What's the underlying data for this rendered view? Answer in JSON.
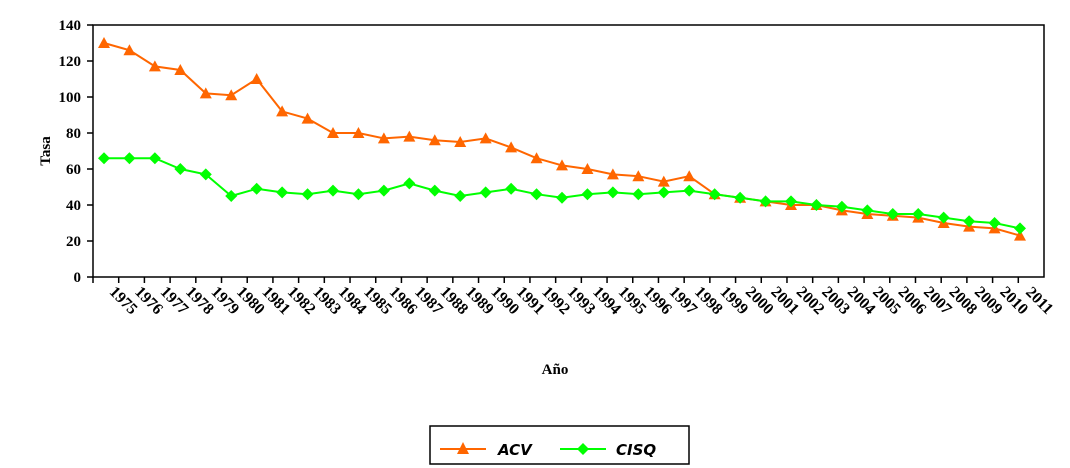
{
  "chart_data": {
    "type": "line",
    "title": "",
    "xlabel": "Año",
    "ylabel": "Tasa",
    "ylim": [
      0,
      140
    ],
    "yticks": [
      0,
      20,
      40,
      60,
      80,
      100,
      120,
      140
    ],
    "grid": false,
    "legend_position": "bottom-center",
    "categories": [
      "1975",
      "1976",
      "1977",
      "1978",
      "1979",
      "1980",
      "1981",
      "1982",
      "1983",
      "1984",
      "1985",
      "1986",
      "1987",
      "1988",
      "1989",
      "1990",
      "1991",
      "1992",
      "1993",
      "1994",
      "1995",
      "1996",
      "1997",
      "1998",
      "1999",
      "2000",
      "2001",
      "2002",
      "2003",
      "2004",
      "2005",
      "2006",
      "2007",
      "2008",
      "2009",
      "2010",
      "2011"
    ],
    "series": [
      {
        "name": "ACV",
        "color": "#FF6600",
        "marker": "triangle",
        "values": [
          130,
          126,
          117,
          115,
          102,
          101,
          110,
          92,
          88,
          80,
          80,
          77,
          78,
          76,
          75,
          77,
          72,
          66,
          62,
          60,
          57,
          56,
          53,
          56,
          46,
          44,
          42,
          40,
          40,
          37,
          35,
          34,
          33,
          30,
          28,
          27,
          23
        ]
      },
      {
        "name": "CISQ",
        "color": "#00FF00",
        "marker": "diamond",
        "values": [
          66,
          66,
          66,
          60,
          57,
          45,
          49,
          47,
          46,
          48,
          46,
          48,
          52,
          48,
          45,
          47,
          49,
          46,
          44,
          46,
          47,
          46,
          47,
          48,
          46,
          44,
          42,
          42,
          40,
          39,
          37,
          35,
          35,
          33,
          31,
          30,
          27
        ]
      }
    ]
  }
}
